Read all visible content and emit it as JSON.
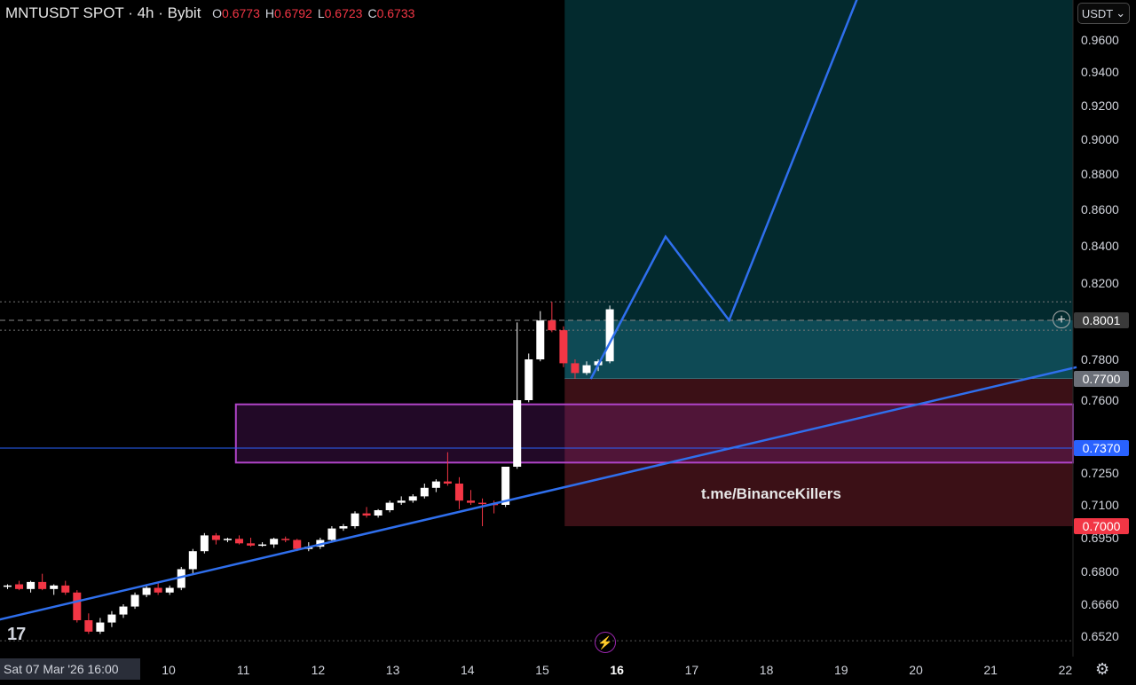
{
  "header": {
    "symbol": "MNTUSDT SPOT · 4h · Bybit",
    "ohlc": [
      {
        "label": "O",
        "value": "0.6773"
      },
      {
        "label": "H",
        "value": "0.6792"
      },
      {
        "label": "L",
        "value": "0.6723"
      },
      {
        "label": "C",
        "value": "0.6733"
      }
    ]
  },
  "currency_button": "USDT",
  "watermark": "t.me/BinanceKillers",
  "date_box": "Sat 07 Mar '26   16:00",
  "price_tags": [
    {
      "price": 0.8001,
      "text": "0.8001",
      "bg": "#3a3a3a"
    },
    {
      "price": 0.77,
      "text": "0.7700",
      "bg": "#6b6f78"
    },
    {
      "price": 0.737,
      "text": "0.7370",
      "bg": "#2962ff"
    },
    {
      "price": 0.7,
      "text": "0.7000",
      "bg": "#f23645"
    }
  ],
  "colors": {
    "up": "#ffffff",
    "down": "#f23645",
    "target_zone": "#0e4a55",
    "stop_zone": "#3b1016",
    "box_border": "#b044c8",
    "trendline": "#2f6fed"
  },
  "chart_data": {
    "type": "candlestick",
    "y_ticks": [
      "0.9600",
      "0.9400",
      "0.9200",
      "0.9000",
      "0.8800",
      "0.8600",
      "0.8400",
      "0.8200",
      "0.8001",
      "0.7800",
      "0.7700",
      "0.7600",
      "0.7370",
      "0.7250",
      "0.7100",
      "0.7000",
      "0.6950",
      "0.6800",
      "0.6660",
      "0.6520"
    ],
    "y_tick_values": [
      0.96,
      0.94,
      0.92,
      0.9,
      0.88,
      0.86,
      0.84,
      0.82,
      0.8001,
      0.78,
      0.77,
      0.76,
      0.737,
      0.725,
      0.71,
      0.7,
      0.695,
      0.68,
      0.666,
      0.652
    ],
    "x_ticks": [
      {
        "label": "10",
        "day": 10
      },
      {
        "label": "11",
        "day": 11
      },
      {
        "label": "12",
        "day": 12
      },
      {
        "label": "13",
        "day": 13
      },
      {
        "label": "14",
        "day": 14
      },
      {
        "label": "15",
        "day": 15
      },
      {
        "label": "16",
        "day": 16,
        "bold": true
      },
      {
        "label": "17",
        "day": 17
      },
      {
        "label": "18",
        "day": 18
      },
      {
        "label": "19",
        "day": 19
      },
      {
        "label": "20",
        "day": 20
      },
      {
        "label": "21",
        "day": 21
      },
      {
        "label": "22",
        "day": 22
      }
    ],
    "candles": [
      [
        0.6735,
        0.6745,
        0.6725,
        0.674
      ],
      [
        0.6745,
        0.676,
        0.672,
        0.6725
      ],
      [
        0.6725,
        0.676,
        0.671,
        0.6755
      ],
      [
        0.6755,
        0.679,
        0.672,
        0.6725
      ],
      [
        0.6725,
        0.6745,
        0.67,
        0.674
      ],
      [
        0.674,
        0.676,
        0.67,
        0.671
      ],
      [
        0.671,
        0.672,
        0.658,
        0.659
      ],
      [
        0.659,
        0.662,
        0.653,
        0.654
      ],
      [
        0.654,
        0.66,
        0.653,
        0.658
      ],
      [
        0.658,
        0.663,
        0.656,
        0.6615
      ],
      [
        0.6615,
        0.666,
        0.66,
        0.665
      ],
      [
        0.665,
        0.671,
        0.664,
        0.67
      ],
      [
        0.67,
        0.674,
        0.669,
        0.673
      ],
      [
        0.673,
        0.675,
        0.67,
        0.671
      ],
      [
        0.671,
        0.674,
        0.67,
        0.673
      ],
      [
        0.673,
        0.682,
        0.672,
        0.681
      ],
      [
        0.681,
        0.69,
        0.679,
        0.689
      ],
      [
        0.689,
        0.697,
        0.688,
        0.696
      ],
      [
        0.696,
        0.697,
        0.692,
        0.694
      ],
      [
        0.694,
        0.695,
        0.693,
        0.6945
      ],
      [
        0.6945,
        0.696,
        0.692,
        0.6925
      ],
      [
        0.6925,
        0.695,
        0.691,
        0.6915
      ],
      [
        0.6915,
        0.693,
        0.691,
        0.692
      ],
      [
        0.692,
        0.695,
        0.6905,
        0.6945
      ],
      [
        0.6945,
        0.6955,
        0.693,
        0.694
      ],
      [
        0.694,
        0.6945,
        0.689,
        0.69
      ],
      [
        0.69,
        0.693,
        0.689,
        0.691
      ],
      [
        0.691,
        0.695,
        0.69,
        0.694
      ],
      [
        0.694,
        0.7,
        0.693,
        0.699
      ],
      [
        0.699,
        0.701,
        0.698,
        0.7
      ],
      [
        0.7,
        0.707,
        0.699,
        0.706
      ],
      [
        0.706,
        0.709,
        0.704,
        0.705
      ],
      [
        0.705,
        0.708,
        0.704,
        0.7075
      ],
      [
        0.7075,
        0.712,
        0.7065,
        0.711
      ],
      [
        0.711,
        0.714,
        0.71,
        0.712
      ],
      [
        0.712,
        0.715,
        0.711,
        0.714
      ],
      [
        0.714,
        0.72,
        0.713,
        0.718
      ],
      [
        0.718,
        0.722,
        0.716,
        0.721
      ],
      [
        0.721,
        0.735,
        0.719,
        0.72
      ],
      [
        0.72,
        0.723,
        0.708,
        0.712
      ],
      [
        0.712,
        0.717,
        0.71,
        0.711
      ],
      [
        0.711,
        0.713,
        0.7,
        0.7105
      ],
      [
        0.7105,
        0.712,
        0.706,
        0.71
      ],
      [
        0.71,
        0.728,
        0.709,
        0.728
      ],
      [
        0.728,
        0.799,
        0.727,
        0.76
      ],
      [
        0.76,
        0.783,
        0.759,
        0.78
      ],
      [
        0.78,
        0.805,
        0.779,
        0.8
      ],
      [
        0.8,
        0.81,
        0.794,
        0.795
      ],
      [
        0.795,
        0.797,
        0.776,
        0.778
      ],
      [
        0.778,
        0.78,
        0.77,
        0.773
      ],
      [
        0.773,
        0.779,
        0.772,
        0.777
      ],
      [
        0.777,
        0.78,
        0.774,
        0.779
      ],
      [
        0.779,
        0.808,
        0.778,
        0.806
      ]
    ],
    "target_zone": {
      "from_day": 15.3,
      "to_day": 22.1,
      "top": 0.8001,
      "bottom": 0.77
    },
    "target_upper_zone": {
      "top": 1.0,
      "bottom": 0.8001
    },
    "stop_zone": {
      "from_day": 15.3,
      "to_day": 22.1,
      "top": 0.77,
      "bottom": 0.7
    },
    "support_box": {
      "from_day": 10.9,
      "to_day": 22.1,
      "top": 0.758,
      "bottom": 0.73
    },
    "hlines": [
      {
        "price": 0.737,
        "style": "solid",
        "color": "#2962ff"
      },
      {
        "price": 0.8001,
        "style": "dashed",
        "color": "#888888"
      },
      {
        "price": 0.81,
        "style": "dotted",
        "color": "#777777"
      },
      {
        "price": 0.795,
        "style": "dotted",
        "color": "#777777"
      },
      {
        "price": 0.65,
        "style": "dotted",
        "color": "#555555"
      }
    ],
    "trendline": {
      "p1": {
        "day": 7.7,
        "price": 0.659
      },
      "p2": {
        "day": 22.15,
        "price": 0.776
      }
    },
    "projection": [
      {
        "day": 15.65,
        "price": 0.77
      },
      {
        "day": 16.65,
        "price": 0.845
      },
      {
        "day": 17.5,
        "price": 0.8001
      },
      {
        "day": 19.25,
        "price": 0.99
      }
    ]
  }
}
